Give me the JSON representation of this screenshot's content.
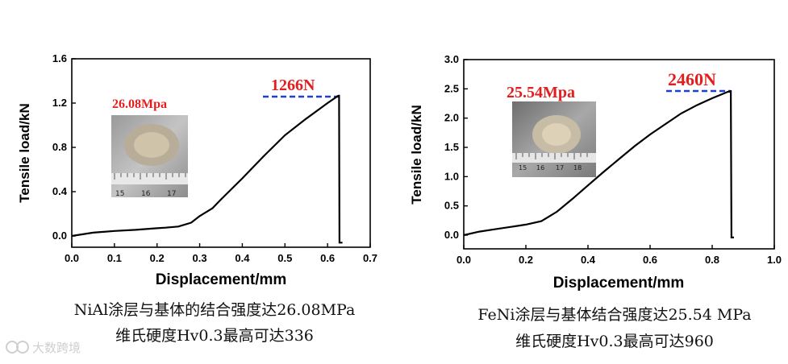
{
  "chart_data": [
    {
      "type": "line",
      "xlabel": "Displacement/mm",
      "ylabel": "Tensile load/kN",
      "xlim": [
        0.0,
        0.7
      ],
      "ylim": [
        0.0,
        1.6
      ],
      "xticks": [
        "0.0",
        "0.1",
        "0.2",
        "0.3",
        "0.4",
        "0.5",
        "0.6",
        "0.7"
      ],
      "yticks": [
        "0.0",
        "0.4",
        "0.8",
        "1.2",
        "1.6"
      ],
      "series": [
        {
          "x": [
            0.0,
            0.05,
            0.1,
            0.15,
            0.2,
            0.22,
            0.25,
            0.28,
            0.3,
            0.33,
            0.35,
            0.4,
            0.45,
            0.5,
            0.55,
            0.6,
            0.625,
            0.627,
            0.628,
            0.635
          ],
          "y": [
            0.0,
            0.03,
            0.045,
            0.055,
            0.07,
            0.075,
            0.085,
            0.12,
            0.18,
            0.25,
            0.33,
            0.52,
            0.72,
            0.91,
            1.06,
            1.2,
            1.266,
            1.266,
            -0.06,
            -0.06
          ]
        }
      ],
      "peak_label": "1266N",
      "peak_load_kN": 1.266,
      "strength_label": "26.08Mpa",
      "caption_line1": "NiAl涂层与基体的结合强度达26.08MPa",
      "caption_line2": "维氏硬度Hv0.3最高可达336"
    },
    {
      "type": "line",
      "xlabel": "Displacement/mm",
      "ylabel": "Tensile load/kN",
      "xlim": [
        0.0,
        1.0
      ],
      "ylim": [
        0.0,
        3.0
      ],
      "xticks": [
        "0.0",
        "0.2",
        "0.4",
        "0.6",
        "0.8",
        "1.0"
      ],
      "yticks": [
        "0.0",
        "0.5",
        "1.0",
        "1.5",
        "2.0",
        "2.5",
        "3.0"
      ],
      "series": [
        {
          "x": [
            0.0,
            0.05,
            0.1,
            0.15,
            0.2,
            0.25,
            0.3,
            0.35,
            0.4,
            0.45,
            0.5,
            0.55,
            0.6,
            0.65,
            0.7,
            0.75,
            0.8,
            0.85,
            0.86,
            0.862,
            0.87
          ],
          "y": [
            0.0,
            0.06,
            0.1,
            0.14,
            0.18,
            0.24,
            0.4,
            0.62,
            0.85,
            1.08,
            1.3,
            1.52,
            1.72,
            1.9,
            2.08,
            2.22,
            2.34,
            2.45,
            2.46,
            -0.04,
            -0.04
          ]
        }
      ],
      "peak_label": "2460N",
      "peak_load_kN": 2.46,
      "strength_label": "25.54Mpa",
      "caption_line1": "FeNi涂层与基体结合强度达25.54 MPa",
      "caption_line2": "维氏硬度Hv0.3最高可达960"
    }
  ],
  "colors": {
    "curve": "#000000",
    "peak_line": "#1f3fd0",
    "annotation": "#e41e1e"
  },
  "watermark": "大数跨境"
}
